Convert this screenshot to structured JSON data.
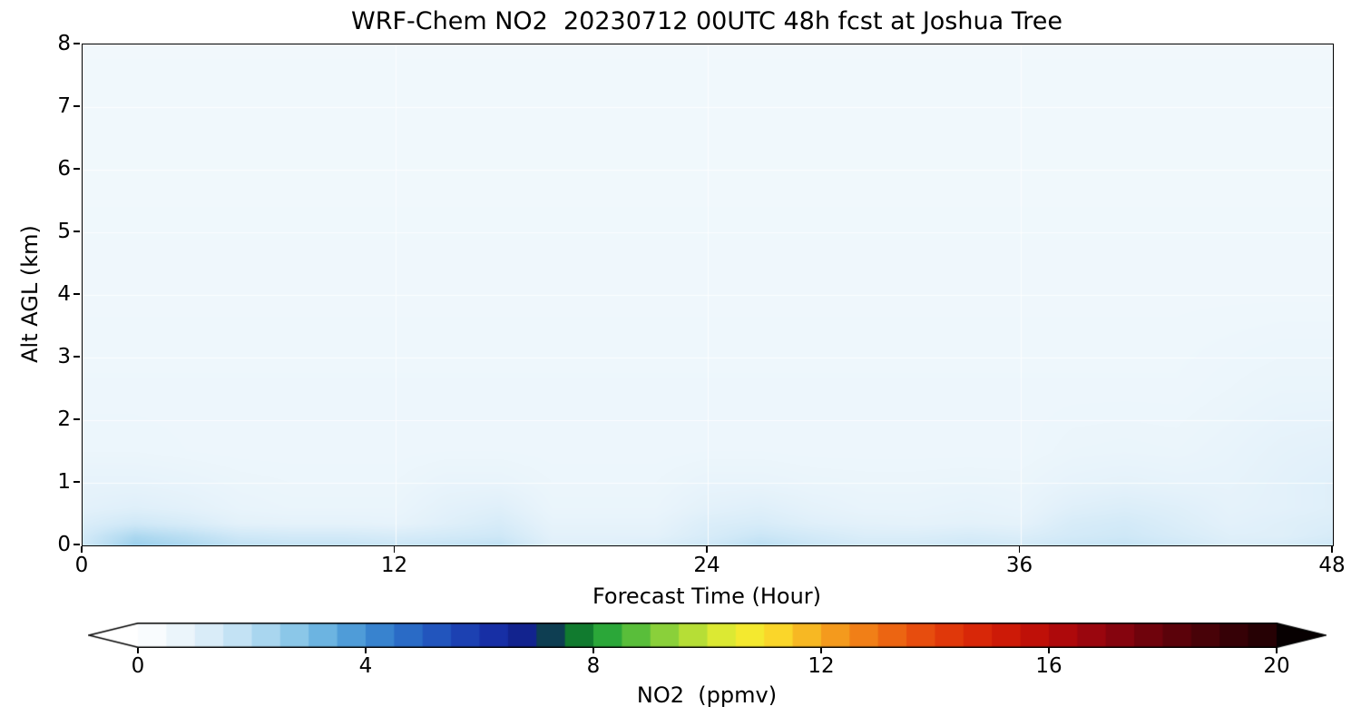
{
  "chart_data": {
    "type": "heatmap",
    "title": "WRF-Chem NO2  20230712 00UTC 48h fcst at Joshua Tree",
    "xlabel": "Forecast Time (Hour)",
    "ylabel": "Alt AGL (km)",
    "xlim": [
      0,
      48
    ],
    "ylim": [
      0,
      8
    ],
    "x_tick_labels": [
      "0",
      "12",
      "24",
      "36",
      "48"
    ],
    "y_tick_labels": [
      "8",
      "7",
      "6",
      "5",
      "4",
      "3",
      "2",
      "1",
      "0"
    ],
    "grid": {
      "vertical_at_hours": [
        12,
        24,
        36
      ],
      "horizontal_at_km": [
        1,
        2,
        3,
        4,
        5,
        6,
        7
      ],
      "color": "rgba(255,255,255,0.8)"
    },
    "x": [
      0,
      2,
      4,
      6,
      8,
      10,
      12,
      14,
      16,
      18,
      20,
      22,
      24,
      26,
      28,
      30,
      32,
      34,
      36,
      38,
      40,
      42,
      44,
      46,
      48
    ],
    "levels_km": [
      0,
      0.15,
      0.35,
      0.6,
      1,
      1.5,
      2.5,
      4,
      8
    ],
    "values_ppmv": [
      [
        1.5,
        2.5,
        2.2,
        1.8,
        1.7,
        1.7,
        1.6,
        1.7,
        1.8,
        1.1,
        1.1,
        1.2,
        1.5,
        1.9,
        1.6,
        1.4,
        1.4,
        1.5,
        1.4,
        1.6,
        1.7,
        1.5,
        1.2,
        1.3,
        1.5
      ],
      [
        1.4,
        2.2,
        1.9,
        1.5,
        1.4,
        1.4,
        1.3,
        1.4,
        1.5,
        1.0,
        1.0,
        1.0,
        1.3,
        1.6,
        1.4,
        1.2,
        1.2,
        1.3,
        1.2,
        1.4,
        1.5,
        1.3,
        1.1,
        1.1,
        1.3
      ],
      [
        1.2,
        1.5,
        1.3,
        1.0,
        0.95,
        0.95,
        0.9,
        1.1,
        1.3,
        0.9,
        0.9,
        0.9,
        1.2,
        1.3,
        1.1,
        1.0,
        0.95,
        1.0,
        0.95,
        1.3,
        1.4,
        1.2,
        1.0,
        1.1,
        1.2
      ],
      [
        1.0,
        1.1,
        1.0,
        0.85,
        0.8,
        0.8,
        0.8,
        1.0,
        1.1,
        0.8,
        0.8,
        0.8,
        1.0,
        1.1,
        0.95,
        0.85,
        0.85,
        0.9,
        0.85,
        1.1,
        1.2,
        1.1,
        0.95,
        1.0,
        1.1
      ],
      [
        0.9,
        0.9,
        0.85,
        0.78,
        0.75,
        0.75,
        0.75,
        0.85,
        0.85,
        0.75,
        0.75,
        0.75,
        0.85,
        0.85,
        0.8,
        0.78,
        0.78,
        0.8,
        0.78,
        0.9,
        0.95,
        0.9,
        0.9,
        1.0,
        1.1
      ],
      [
        0.75,
        0.75,
        0.72,
        0.7,
        0.7,
        0.7,
        0.7,
        0.72,
        0.72,
        0.7,
        0.7,
        0.7,
        0.72,
        0.72,
        0.7,
        0.7,
        0.7,
        0.7,
        0.7,
        0.78,
        0.8,
        0.78,
        0.85,
        0.95,
        1.0
      ],
      [
        0.7,
        0.7,
        0.7,
        0.7,
        0.7,
        0.7,
        0.7,
        0.7,
        0.7,
        0.7,
        0.7,
        0.7,
        0.7,
        0.7,
        0.7,
        0.7,
        0.7,
        0.7,
        0.7,
        0.7,
        0.7,
        0.7,
        0.75,
        0.8,
        0.8
      ],
      [
        0.65,
        0.65,
        0.65,
        0.65,
        0.65,
        0.65,
        0.65,
        0.65,
        0.65,
        0.65,
        0.65,
        0.65,
        0.65,
        0.65,
        0.65,
        0.65,
        0.65,
        0.65,
        0.65,
        0.65,
        0.65,
        0.65,
        0.65,
        0.65,
        0.65
      ],
      [
        0.6,
        0.6,
        0.6,
        0.6,
        0.6,
        0.6,
        0.6,
        0.6,
        0.6,
        0.6,
        0.6,
        0.6,
        0.6,
        0.6,
        0.6,
        0.6,
        0.6,
        0.6,
        0.6,
        0.6,
        0.6,
        0.6,
        0.6,
        0.6,
        0.6
      ]
    ],
    "colorbar": {
      "label": "NO2  (ppmv)",
      "tick_labels": [
        "0",
        "4",
        "8",
        "12",
        "16",
        "20"
      ],
      "range": [
        0,
        20
      ],
      "extend": "both",
      "step": 0.5,
      "under_color": "#ffffff",
      "over_color": "#070001",
      "colormap_stops": [
        [
          0,
          "#ffffff"
        ],
        [
          0.5,
          "#f4fafd"
        ],
        [
          1,
          "#e3f1fa"
        ],
        [
          1.5,
          "#cfe8f7"
        ],
        [
          2,
          "#b7ddf2"
        ],
        [
          2.5,
          "#9bd0ec"
        ],
        [
          3,
          "#7cbfe5"
        ],
        [
          3.5,
          "#5da9dd"
        ],
        [
          4,
          "#4190d4"
        ],
        [
          4.5,
          "#2f76cb"
        ],
        [
          5,
          "#2660c2"
        ],
        [
          5.5,
          "#1f4bb8"
        ],
        [
          6,
          "#1a38ac"
        ],
        [
          6.5,
          "#14279e"
        ],
        [
          7,
          "#10207f"
        ],
        [
          7.5,
          "#0c5c26"
        ],
        [
          8,
          "#169a38"
        ],
        [
          8.5,
          "#41b53a"
        ],
        [
          9,
          "#72c83b"
        ],
        [
          9.5,
          "#a2d839"
        ],
        [
          10,
          "#cbe434"
        ],
        [
          10.5,
          "#eeee32"
        ],
        [
          11,
          "#fbe52d"
        ],
        [
          11.5,
          "#f9c827"
        ],
        [
          12,
          "#f6a820"
        ],
        [
          12.5,
          "#f38c1a"
        ],
        [
          13,
          "#ef7215"
        ],
        [
          13.5,
          "#ea5910"
        ],
        [
          14,
          "#e4420c"
        ],
        [
          14.5,
          "#dd2e09"
        ],
        [
          15,
          "#d42007"
        ],
        [
          15.5,
          "#c71407"
        ],
        [
          16,
          "#b80c0a"
        ],
        [
          16.5,
          "#a4070d"
        ],
        [
          17,
          "#90050f"
        ],
        [
          17.5,
          "#7a040e"
        ],
        [
          18,
          "#65030b"
        ],
        [
          18.5,
          "#510209"
        ],
        [
          19,
          "#3f0207"
        ],
        [
          19.5,
          "#2e0105"
        ],
        [
          20,
          "#1f0103"
        ],
        [
          20.5,
          "#120102"
        ],
        [
          21,
          "#070001"
        ]
      ]
    }
  }
}
